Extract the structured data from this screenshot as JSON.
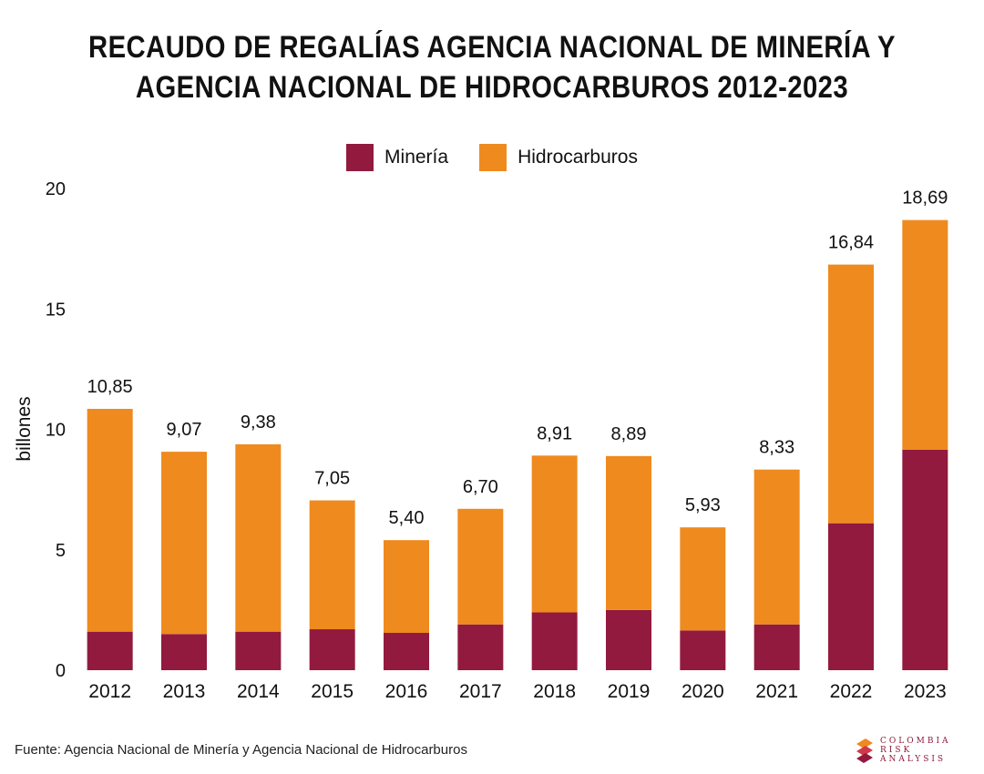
{
  "title_lines": [
    "RECAUDO DE REGALÍAS AGENCIA NACIONAL DE MINERÍA Y",
    "AGENCIA NACIONAL DE HIDROCARBUROS 2012-2023"
  ],
  "colors": {
    "mineria": "#921a3e",
    "hidrocarburos": "#ef8a1f"
  },
  "footer": {
    "source": "Fuente: Agencia Nacional de Minería y Agencia Nacional de Hidrocarburos"
  },
  "logo": {
    "lines": [
      "COLOMBIA",
      "RISK",
      "ANALYSIS"
    ]
  },
  "chart_data": {
    "type": "bar",
    "stacked": true,
    "ylabel": "billones",
    "ylim": [
      0,
      20
    ],
    "yticks": [
      0,
      5,
      10,
      15,
      20
    ],
    "legend": "top-center",
    "grid": false,
    "categories": [
      "2012",
      "2013",
      "2014",
      "2015",
      "2016",
      "2017",
      "2018",
      "2019",
      "2020",
      "2021",
      "2022",
      "2023"
    ],
    "series": [
      {
        "name": "Minería",
        "values": [
          1.6,
          1.5,
          1.6,
          1.7,
          1.55,
          1.9,
          2.4,
          2.5,
          1.65,
          1.9,
          6.1,
          9.15
        ]
      },
      {
        "name": "Hidrocarburos",
        "values": [
          9.25,
          7.57,
          7.78,
          5.35,
          3.85,
          4.8,
          6.51,
          6.39,
          4.28,
          6.43,
          10.74,
          9.54
        ]
      }
    ],
    "totals": [
      10.85,
      9.07,
      9.38,
      7.05,
      5.4,
      6.7,
      8.91,
      8.89,
      5.93,
      8.33,
      16.84,
      18.69
    ],
    "total_labels": [
      "10,85",
      "9,07",
      "9,38",
      "7,05",
      "5,40",
      "6,70",
      "8,91",
      "8,89",
      "5,93",
      "8,33",
      "16,84",
      "18,69"
    ]
  }
}
